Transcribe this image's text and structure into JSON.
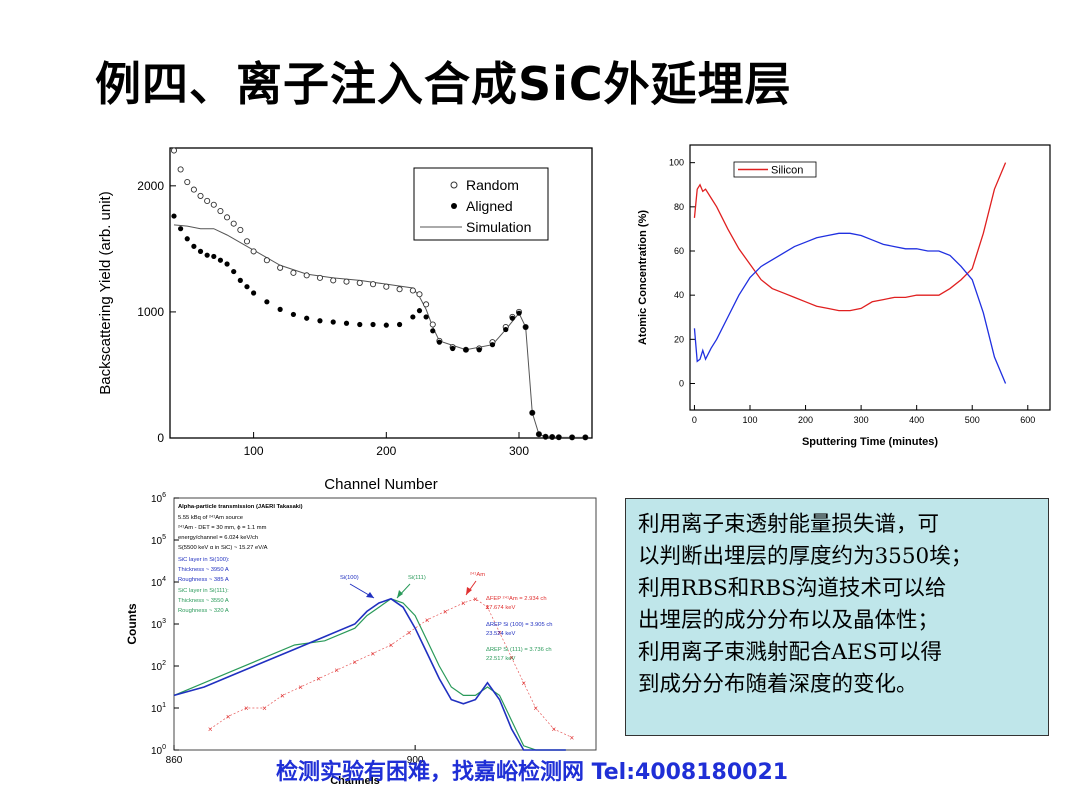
{
  "slide": {
    "title_part1": "例四、离子注入合成",
    "title_latin": "SiC",
    "title_part2": "外延埋层",
    "info_lines": [
      "利用离子束透射能量损失谱，可",
      "以判断出埋层的厚度约为3550埃；",
      "利用RBS和RBS沟道技术可以给",
      "出埋层的成分分布以及晶体性；",
      "利用离子束溅射配合AES可以得",
      "到成分分布随着深度的变化。"
    ],
    "footer": "检测实验有困难，找嘉峪检测网 Tel:4008180021"
  },
  "chart_data": [
    {
      "type": "scatter",
      "xlabel": "Channel Number",
      "ylabel": "Backscattering Yield (arb. unit)",
      "xlim": [
        37,
        355
      ],
      "ylim": [
        0,
        2300
      ],
      "xticks": [
        100,
        200,
        300
      ],
      "yticks": [
        0,
        1000,
        2000
      ],
      "legend": [
        "Random",
        "Aligned",
        "Simulation"
      ],
      "legend_position": "top-right",
      "series": [
        {
          "name": "Random",
          "marker": "open-circle",
          "x": [
            40,
            45,
            50,
            55,
            60,
            65,
            70,
            75,
            80,
            85,
            90,
            95,
            100,
            110,
            120,
            130,
            140,
            150,
            160,
            170,
            180,
            190,
            200,
            210,
            220,
            225,
            230,
            235,
            240,
            250,
            260,
            270,
            280,
            290,
            295,
            300,
            305,
            310,
            315,
            320,
            325,
            330,
            340,
            350
          ],
          "y": [
            2280,
            2130,
            2030,
            1970,
            1920,
            1880,
            1850,
            1800,
            1750,
            1700,
            1650,
            1560,
            1480,
            1410,
            1350,
            1310,
            1290,
            1270,
            1250,
            1240,
            1230,
            1220,
            1200,
            1180,
            1170,
            1140,
            1060,
            900,
            770,
            720,
            700,
            710,
            760,
            880,
            960,
            1000,
            880,
            200,
            30,
            10,
            8,
            6,
            5,
            5
          ]
        },
        {
          "name": "Aligned",
          "marker": "filled-circle",
          "x": [
            40,
            45,
            50,
            55,
            60,
            65,
            70,
            75,
            80,
            85,
            90,
            95,
            100,
            110,
            120,
            130,
            140,
            150,
            160,
            170,
            180,
            190,
            200,
            210,
            220,
            225,
            230,
            235,
            240,
            250,
            260,
            270,
            280,
            290,
            295,
            300,
            305,
            310,
            315,
            320,
            325,
            330,
            340,
            350
          ],
          "y": [
            1760,
            1660,
            1580,
            1520,
            1480,
            1450,
            1440,
            1410,
            1380,
            1320,
            1250,
            1200,
            1150,
            1080,
            1020,
            980,
            950,
            930,
            920,
            910,
            900,
            900,
            895,
            900,
            960,
            1010,
            960,
            850,
            760,
            710,
            700,
            700,
            740,
            860,
            950,
            990,
            880,
            200,
            30,
            10,
            8,
            6,
            5,
            5
          ]
        },
        {
          "name": "Simulation",
          "marker": "line",
          "x": [
            40,
            50,
            60,
            70,
            80,
            90,
            100,
            120,
            140,
            160,
            180,
            200,
            220,
            225,
            230,
            235,
            240,
            260,
            280,
            290,
            300,
            305,
            310,
            315,
            320,
            330,
            350
          ],
          "y": [
            1690,
            1680,
            1660,
            1660,
            1610,
            1550,
            1490,
            1370,
            1300,
            1270,
            1250,
            1220,
            1190,
            1120,
            1020,
            880,
            770,
            700,
            740,
            860,
            990,
            880,
            200,
            30,
            10,
            5,
            5
          ]
        }
      ]
    },
    {
      "type": "line",
      "xlabel": "Sputtering Time (minutes)",
      "ylabel": "Atomic Concentration (%)",
      "xlim": [
        -8,
        640
      ],
      "ylim": [
        -12,
        108
      ],
      "xticks": [
        0,
        100,
        200,
        300,
        400,
        500,
        600
      ],
      "yticks": [
        0,
        20,
        40,
        60,
        80,
        100
      ],
      "legend": [
        "Silicon"
      ],
      "legend_position": "top-left",
      "series": [
        {
          "name": "Silicon",
          "color": "#e02020",
          "x": [
            0,
            5,
            10,
            15,
            20,
            30,
            40,
            60,
            80,
            100,
            120,
            140,
            160,
            180,
            200,
            220,
            240,
            260,
            280,
            300,
            320,
            340,
            360,
            380,
            400,
            420,
            440,
            460,
            480,
            500,
            520,
            540,
            560
          ],
          "y": [
            75,
            88,
            90,
            87,
            88,
            84,
            80,
            70,
            61,
            54,
            47,
            43,
            41,
            39,
            37,
            35,
            34,
            33,
            33,
            34,
            37,
            38,
            39,
            39,
            40,
            40,
            40,
            43,
            47,
            52,
            68,
            88,
            100
          ]
        },
        {
          "name": "",
          "color": "#2030e0",
          "x": [
            0,
            5,
            10,
            15,
            20,
            30,
            40,
            60,
            80,
            100,
            120,
            140,
            160,
            180,
            200,
            220,
            240,
            260,
            280,
            300,
            320,
            340,
            360,
            380,
            400,
            420,
            440,
            460,
            480,
            500,
            520,
            540,
            560
          ],
          "y": [
            25,
            10,
            11,
            15,
            11,
            16,
            20,
            30,
            40,
            48,
            53,
            56,
            59,
            62,
            64,
            66,
            67,
            68,
            68,
            67,
            65,
            63,
            62,
            61,
            61,
            60,
            60,
            58,
            53,
            47,
            32,
            12,
            0
          ]
        }
      ]
    },
    {
      "type": "line",
      "xlabel": "Channels",
      "ylabel": "Counts",
      "yscale": "log",
      "xlim": [
        860,
        930
      ],
      "ylim_exp": [
        0,
        6
      ],
      "xticks": [
        860,
        900
      ],
      "yticks": [
        "10^0",
        "10^1",
        "10^2",
        "10^3",
        "10^4",
        "10^5",
        "10^6"
      ],
      "annotations": [
        {
          "text": "Alpha-particle transmission (JAERI Takasaki)",
          "color": "#000000"
        },
        {
          "text": "5.55 kBq of ²⁴¹Am source",
          "color": "#000000"
        },
        {
          "text": "²⁴¹Am - DET = 30 mm, ϕ = 1.1 mm",
          "color": "#000000"
        },
        {
          "text": "energy/channel = 6.024 keV/ch",
          "color": "#000000"
        },
        {
          "text": "S(5500 keV α in SiC) ~ 15.27 eV/A",
          "color": "#000000"
        },
        {
          "text": "SiC layer in Si(100):",
          "color": "#2030c0"
        },
        {
          "text": "Thickness ~ 3950 A",
          "color": "#2030c0"
        },
        {
          "text": "Roughness ~ 385 A",
          "color": "#2030c0"
        },
        {
          "text": "SiC layer in Si(111):",
          "color": "#2a9a5a"
        },
        {
          "text": "Thickness ~ 3550 A",
          "color": "#2a9a5a"
        },
        {
          "text": "Roughness ~ 320 A",
          "color": "#2a9a5a"
        },
        {
          "text": "Si(100)",
          "color": "#2030c0"
        },
        {
          "text": "Si(111)",
          "color": "#2a9a5a"
        },
        {
          "text": "²⁴¹Am",
          "color": "#e03030"
        },
        {
          "text": "ΔFEP ²⁴¹Am = 2.934 ch",
          "color": "#e03030"
        },
        {
          "text": "17.674 keV",
          "color": "#e03030"
        },
        {
          "text": "ΔREP Si (100) = 3.905 ch",
          "color": "#2030c0"
        },
        {
          "text": "23.524 keV",
          "color": "#2030c0"
        },
        {
          "text": "ΔREP Si (111) = 3.736 ch",
          "color": "#2a9a5a"
        },
        {
          "text": "22.517 keV",
          "color": "#2a9a5a"
        }
      ],
      "series": [
        {
          "name": "Si(100)",
          "color": "#2030c0",
          "x": [
            860,
            865,
            870,
            875,
            880,
            885,
            890,
            892,
            894,
            896,
            898,
            900,
            902,
            904,
            906,
            908,
            910,
            912,
            914,
            916,
            918,
            920,
            925
          ],
          "y_log": [
            1.3,
            1.5,
            1.8,
            2.1,
            2.4,
            2.7,
            3.0,
            3.3,
            3.5,
            3.6,
            3.4,
            2.9,
            2.3,
            1.7,
            1.2,
            1.1,
            1.2,
            1.6,
            1.2,
            0.5,
            0.0,
            -0.5,
            -0.5
          ]
        },
        {
          "name": "Si(111)",
          "color": "#2a9a5a",
          "x": [
            860,
            865,
            870,
            875,
            880,
            885,
            890,
            892,
            894,
            896,
            898,
            900,
            902,
            904,
            906,
            908,
            910,
            912,
            914,
            916,
            918,
            920,
            925
          ],
          "y_log": [
            1.3,
            1.6,
            1.9,
            2.2,
            2.5,
            2.6,
            2.9,
            3.2,
            3.4,
            3.6,
            3.5,
            3.2,
            2.6,
            2.0,
            1.5,
            1.3,
            1.3,
            1.5,
            1.3,
            0.7,
            0.1,
            -0.5,
            -0.5
          ]
        },
        {
          "name": "²⁴¹Am",
          "color": "#e03030",
          "marker": "x",
          "x": [
            866,
            869,
            872,
            875,
            878,
            881,
            884,
            887,
            890,
            893,
            896,
            899,
            902,
            905,
            908,
            910,
            912,
            914,
            916,
            918,
            920,
            923,
            926
          ],
          "y_log": [
            0.5,
            0.8,
            1.0,
            1.0,
            1.3,
            1.5,
            1.7,
            1.9,
            2.1,
            2.3,
            2.5,
            2.8,
            3.1,
            3.3,
            3.5,
            3.6,
            3.4,
            2.8,
            2.2,
            1.6,
            1.0,
            0.5,
            0.3
          ]
        }
      ]
    }
  ]
}
